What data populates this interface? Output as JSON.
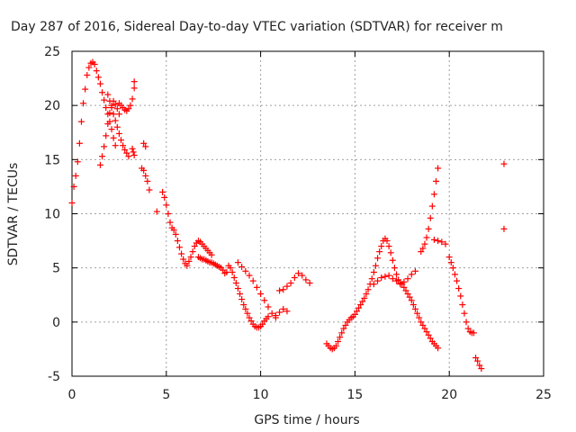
{
  "chart_data": {
    "type": "scatter",
    "title": "Day 287 of 2016, Sidereal Day-to-day VTEC variation (SDTVAR) for receiver m",
    "xlabel": "GPS time / hours",
    "ylabel": "SDTVAR / TECUs",
    "xlim": [
      0,
      25
    ],
    "ylim": [
      -5,
      25
    ],
    "xticks": [
      "0",
      "5",
      "10",
      "15",
      "20",
      "25"
    ],
    "yticks": [
      "-5",
      "0",
      "5",
      "10",
      "15",
      "20",
      "25"
    ],
    "grid": true,
    "marker": "+",
    "color": "#ff0000",
    "series": [
      {
        "name": "SDTVAR",
        "x": [
          0.0,
          0.1,
          0.2,
          0.3,
          0.4,
          0.5,
          0.6,
          0.7,
          0.8,
          0.9,
          1.0,
          1.1,
          1.2,
          1.3,
          1.4,
          1.5,
          1.6,
          1.7,
          1.8,
          1.9,
          2.0,
          2.1,
          2.2,
          2.3,
          1.5,
          1.6,
          1.7,
          1.8,
          1.9,
          2.0,
          2.1,
          2.2,
          2.3,
          2.4,
          2.5,
          1.9,
          2.0,
          2.1,
          2.2,
          2.3,
          2.4,
          2.5,
          2.6,
          2.7,
          2.8,
          2.9,
          3.0,
          2.5,
          2.6,
          2.7,
          2.8,
          2.9,
          3.0,
          3.1,
          3.2,
          3.3,
          3.3,
          3.2,
          3.25,
          3.3,
          3.8,
          3.9,
          3.7,
          3.8,
          3.9,
          4.0,
          4.1,
          4.5,
          4.8,
          4.9,
          5.0,
          5.1,
          5.2,
          5.3,
          5.4,
          5.5,
          5.6,
          5.7,
          5.8,
          5.9,
          6.0,
          6.1,
          6.2,
          6.3,
          6.4,
          6.5,
          6.6,
          6.7,
          6.8,
          6.9,
          7.0,
          7.1,
          7.2,
          7.3,
          7.4,
          6.7,
          6.8,
          6.9,
          7.0,
          7.1,
          7.2,
          7.3,
          7.4,
          7.5,
          7.6,
          7.7,
          7.8,
          7.9,
          8.0,
          8.1,
          8.2,
          8.3,
          8.4,
          8.5,
          8.6,
          8.7,
          8.8,
          8.9,
          9.0,
          9.1,
          9.2,
          9.3,
          9.4,
          9.5,
          9.6,
          9.7,
          9.8,
          9.9,
          10.0,
          10.1,
          10.2,
          10.3,
          10.4,
          8.8,
          9.0,
          9.2,
          9.4,
          9.6,
          9.8,
          10.0,
          10.2,
          10.4,
          10.6,
          10.8,
          11.0,
          11.2,
          11.4,
          10.8,
          11.0,
          11.2,
          11.4,
          11.6,
          11.8,
          12.0,
          12.2,
          12.4,
          12.6,
          13.5,
          13.6,
          13.7,
          13.8,
          13.9,
          14.0,
          14.1,
          14.2,
          14.3,
          14.4,
          14.5,
          14.6,
          14.7,
          14.8,
          14.9,
          15.0,
          15.1,
          15.2,
          15.3,
          15.4,
          15.5,
          15.6,
          15.7,
          15.8,
          15.9,
          16.0,
          16.1,
          16.2,
          16.3,
          16.4,
          16.5,
          16.6,
          16.7,
          16.8,
          16.9,
          17.0,
          17.1,
          17.2,
          17.3,
          17.4,
          16.0,
          16.2,
          16.4,
          16.6,
          16.8,
          17.0,
          17.2,
          17.4,
          17.6,
          17.8,
          18.0,
          18.2,
          17.5,
          17.6,
          17.7,
          17.8,
          17.9,
          18.0,
          18.1,
          18.2,
          18.3,
          18.4,
          18.5,
          18.6,
          18.7,
          18.8,
          18.9,
          19.0,
          19.1,
          19.2,
          19.3,
          19.4,
          18.5,
          18.6,
          18.7,
          18.8,
          18.9,
          19.0,
          19.1,
          19.2,
          19.3,
          19.4,
          19.2,
          19.4,
          19.6,
          19.8,
          20.0,
          20.1,
          20.2,
          20.3,
          20.4,
          20.5,
          20.6,
          20.7,
          20.8,
          20.9,
          21.0,
          21.1,
          21.2,
          21.3,
          21.4,
          21.5,
          21.6,
          21.7,
          22.9,
          22.9
        ],
        "y": [
          11.0,
          12.5,
          13.5,
          14.8,
          16.5,
          18.5,
          20.2,
          21.5,
          22.8,
          23.5,
          23.9,
          24.0,
          23.8,
          23.2,
          22.6,
          22.0,
          21.2,
          20.5,
          19.8,
          19.2,
          18.5,
          17.8,
          17.0,
          16.3,
          14.5,
          15.3,
          16.2,
          17.2,
          18.3,
          19.3,
          20.0,
          20.4,
          20.1,
          19.7,
          19.2,
          21.0,
          20.4,
          19.8,
          19.2,
          18.6,
          18.0,
          17.4,
          16.8,
          16.3,
          15.9,
          15.6,
          15.3,
          20.2,
          20.0,
          19.8,
          19.6,
          19.5,
          19.7,
          20.0,
          20.6,
          21.6,
          22.2,
          16.0,
          15.7,
          15.4,
          16.5,
          16.2,
          14.2,
          14.0,
          13.5,
          13.0,
          12.2,
          10.2,
          12.0,
          11.5,
          10.8,
          10.0,
          9.2,
          8.7,
          8.5,
          8.1,
          7.5,
          6.9,
          6.3,
          5.8,
          5.4,
          5.2,
          5.6,
          6.0,
          6.5,
          7.0,
          7.3,
          7.5,
          7.4,
          7.2,
          7.0,
          6.8,
          6.6,
          6.4,
          6.2,
          6.0,
          5.9,
          5.8,
          5.8,
          5.7,
          5.6,
          5.5,
          5.5,
          5.4,
          5.3,
          5.2,
          5.1,
          5.0,
          4.8,
          4.5,
          4.6,
          5.2,
          5.0,
          4.6,
          4.1,
          3.6,
          3.1,
          2.6,
          2.1,
          1.6,
          1.2,
          0.8,
          0.4,
          0.1,
          -0.2,
          -0.4,
          -0.5,
          -0.5,
          -0.4,
          -0.2,
          0.1,
          0.3,
          0.5,
          5.5,
          5.1,
          4.7,
          4.3,
          3.8,
          3.2,
          2.6,
          2.0,
          1.4,
          0.8,
          0.4,
          2.9,
          3.0,
          3.3,
          0.6,
          0.9,
          1.2,
          1.0,
          3.6,
          4.1,
          4.5,
          4.3,
          3.9,
          3.6,
          -2.0,
          -2.2,
          -2.4,
          -2.5,
          -2.4,
          -2.2,
          -1.8,
          -1.4,
          -1.0,
          -0.6,
          -0.3,
          0.0,
          0.2,
          0.4,
          0.5,
          0.7,
          1.0,
          1.3,
          1.6,
          1.9,
          2.2,
          2.6,
          3.0,
          3.5,
          4.0,
          4.6,
          5.2,
          5.9,
          6.5,
          7.0,
          7.5,
          7.7,
          7.5,
          7.0,
          6.4,
          5.7,
          5.0,
          4.4,
          3.9,
          3.5,
          3.5,
          3.8,
          4.1,
          4.2,
          4.3,
          4.0,
          3.8,
          3.6,
          3.7,
          4.0,
          4.4,
          4.7,
          3.5,
          3.2,
          2.9,
          2.6,
          2.3,
          2.0,
          1.6,
          1.2,
          0.8,
          0.4,
          0.0,
          -0.3,
          -0.6,
          -0.9,
          -1.2,
          -1.5,
          -1.8,
          -2.0,
          -2.2,
          -2.4,
          6.5,
          6.8,
          7.2,
          7.8,
          8.6,
          9.6,
          10.7,
          11.8,
          13.0,
          14.2,
          7.6,
          7.5,
          7.4,
          7.2,
          6.0,
          5.5,
          5.0,
          4.4,
          3.8,
          3.1,
          2.4,
          1.6,
          0.8,
          0.0,
          -0.6,
          -0.9,
          -1.0,
          -1.0,
          -3.3,
          -3.6,
          -4.0,
          -4.3,
          14.6,
          8.6
        ]
      }
    ]
  }
}
